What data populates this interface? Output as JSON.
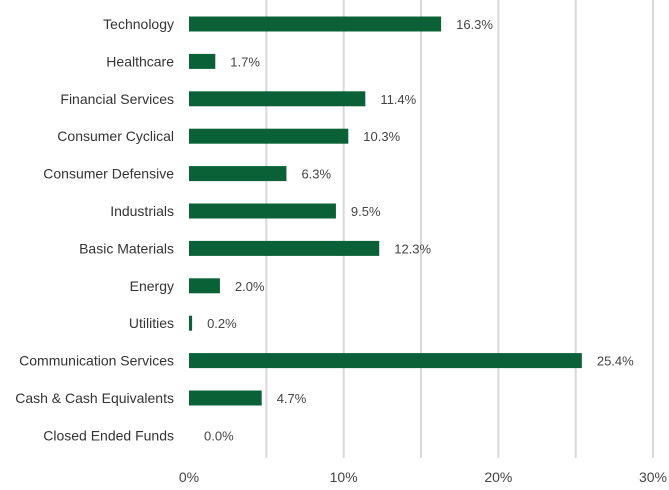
{
  "chart_data": {
    "type": "bar",
    "orientation": "horizontal",
    "title": "",
    "xlabel": "",
    "ylabel": "",
    "categories": [
      "Technology",
      "Healthcare",
      "Financial Services",
      "Consumer Cyclical",
      "Consumer Defensive",
      "Industrials",
      "Basic Materials",
      "Energy",
      "Utilities",
      "Communication Services",
      "Cash & Cash Equivalents",
      "Closed Ended Funds"
    ],
    "values": [
      16.3,
      1.7,
      11.4,
      10.3,
      6.3,
      9.5,
      12.3,
      2.0,
      0.2,
      25.4,
      4.7,
      0.0
    ],
    "value_labels": [
      "16.3%",
      "1.7%",
      "11.4%",
      "10.3%",
      "6.3%",
      "9.5%",
      "12.3%",
      "2.0%",
      "0.2%",
      "25.4%",
      "4.7%",
      "0.0%"
    ],
    "xlim": [
      0,
      30
    ],
    "x_ticks": [
      0,
      10,
      20,
      30
    ],
    "x_tick_labels": [
      "0%",
      "10%",
      "20%",
      "30%"
    ],
    "grid": "vertical",
    "bar_color": "#0a6138",
    "legend": "none"
  }
}
